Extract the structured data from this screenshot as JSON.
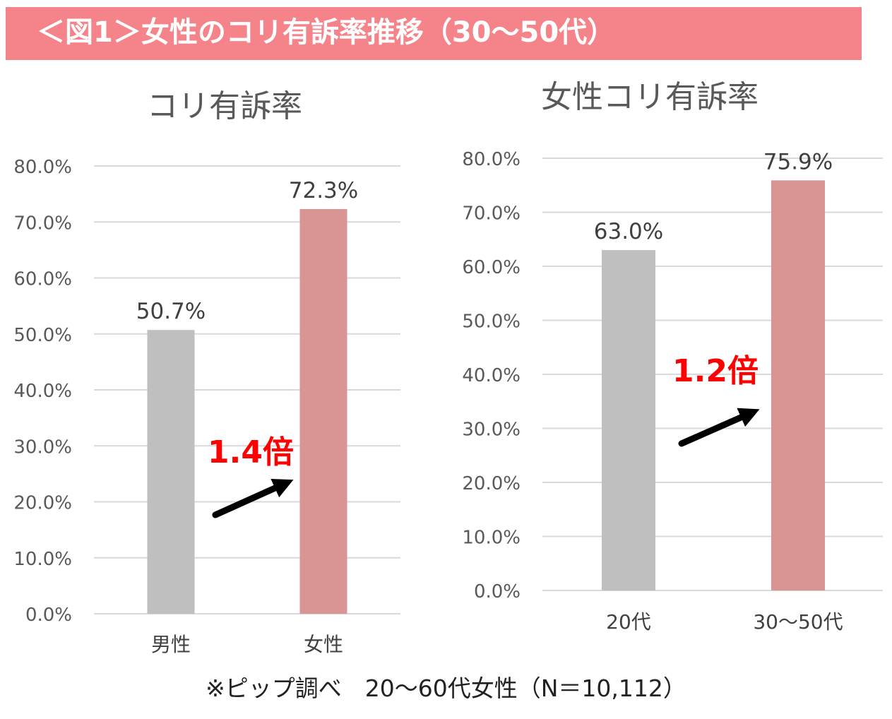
{
  "header": {
    "title": "＜図1＞女性のコリ有訴率推移（30〜50代）"
  },
  "footnote": "※ピップ調べ　20〜60代女性（N＝10,112）",
  "colors": {
    "banner": "#f5848a",
    "gray_bar": "#bfbfbf",
    "pink_bar": "#d99594",
    "grid": "#d9d9d9",
    "multiplier": "#ff0000"
  },
  "chart_data": [
    {
      "type": "bar",
      "title": "コリ有訴率",
      "categories": [
        "男性",
        "女性"
      ],
      "values": [
        50.7,
        72.3
      ],
      "data_labels": [
        "50.7%",
        "72.3%"
      ],
      "y_ticks": [
        "0.0%",
        "10.0%",
        "20.0%",
        "30.0%",
        "40.0%",
        "50.0%",
        "60.0%",
        "70.0%",
        "80.0%"
      ],
      "ylim": [
        0,
        80
      ],
      "grid": true,
      "annotation": "1.4倍"
    },
    {
      "type": "bar",
      "title": "女性コリ有訴率",
      "categories": [
        "20代",
        "30〜50代"
      ],
      "values": [
        63.0,
        75.9
      ],
      "data_labels": [
        "63.0%",
        "75.9%"
      ],
      "y_ticks": [
        "0.0%",
        "10.0%",
        "20.0%",
        "30.0%",
        "40.0%",
        "50.0%",
        "60.0%",
        "70.0%",
        "80.0%"
      ],
      "ylim": [
        0,
        80
      ],
      "grid": true,
      "annotation": "1.2倍"
    }
  ]
}
